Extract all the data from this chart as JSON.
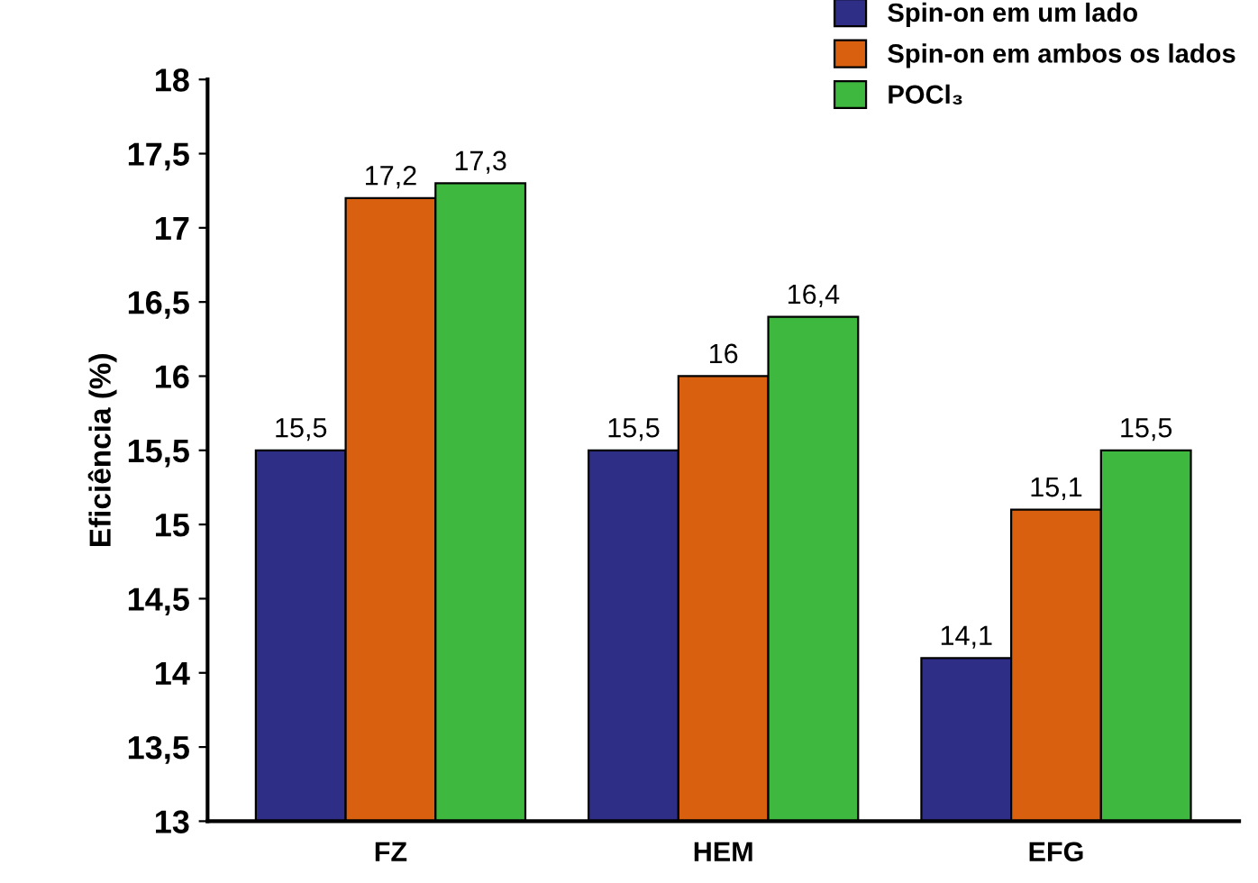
{
  "chart_data": {
    "type": "bar",
    "ylabel": "Eficiência (%)",
    "categories": [
      "FZ",
      "HEM",
      "EFG"
    ],
    "series": [
      {
        "name": "Spin-on em um lado",
        "color": "#2e2e86",
        "values": [
          15.5,
          15.5,
          14.1
        ],
        "value_labels": [
          "15,5",
          "15,5",
          "14,1"
        ]
      },
      {
        "name": "Spin-on em ambos os lados",
        "color": "#d9600e",
        "values": [
          17.2,
          16,
          15.1
        ],
        "value_labels": [
          "17,2",
          "16",
          "15,1"
        ]
      },
      {
        "name": "POCl₃",
        "color": "#3fb83f",
        "values": [
          17.3,
          16.4,
          15.5
        ],
        "value_labels": [
          "17,3",
          "16,4",
          "15,5"
        ]
      }
    ],
    "ylim": [
      13,
      18
    ],
    "yticks": [
      13,
      {
        "value": 13.5,
        "label": "13,5"
      },
      14,
      {
        "value": 14.5,
        "label": "14,5"
      },
      15,
      {
        "value": 15.5,
        "label": "15,5"
      },
      16,
      {
        "value": 16.5,
        "label": "16,5"
      },
      17,
      {
        "value": 17.5,
        "label": "17,5"
      },
      18
    ],
    "grid": false,
    "legend": "top right"
  }
}
